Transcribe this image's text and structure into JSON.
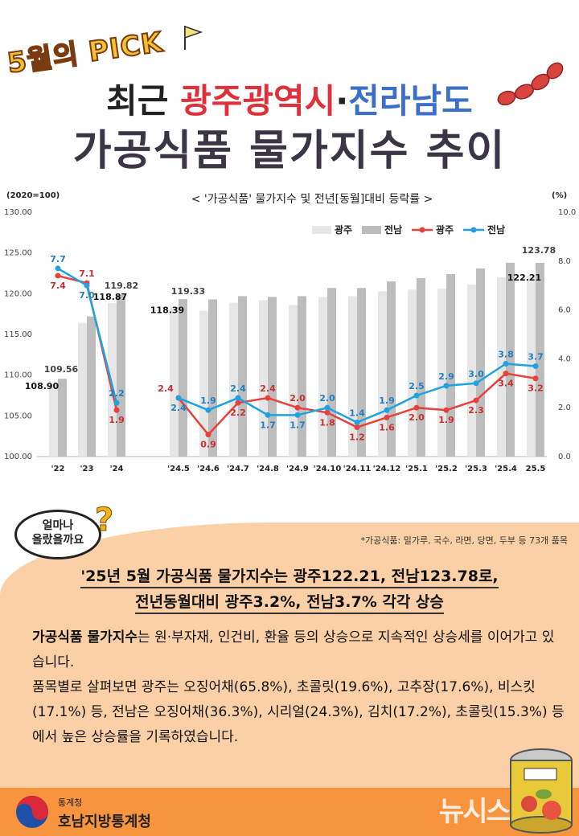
{
  "header": {
    "pick_label": "5월의 PICK",
    "title_line1_a": "최근 ",
    "title_line1_b": "광주광역시",
    "title_line1_c": "·",
    "title_line1_d": "전라남도",
    "title_line2": "가공식품 물가지수 추이"
  },
  "chart_data": {
    "type": "bar",
    "title": "< '가공식품'  물가지수 및 전년[동월]대비 등락률 >",
    "left_axis_unit": "(2020=100)",
    "right_axis_unit": "(%)",
    "left_ylim": [
      100,
      130
    ],
    "left_ticks": [
      "100.00",
      "105.00",
      "110.00",
      "115.00",
      "120.00",
      "125.00",
      "130.00"
    ],
    "right_ylim": [
      0,
      10
    ],
    "right_ticks": [
      "0.0",
      "2.0",
      "4.0",
      "6.0",
      "8.0",
      "10.0"
    ],
    "categories": [
      "'22",
      "'23",
      "'24",
      "'24.5",
      "'24.6",
      "'24.7",
      "'24.8",
      "'24.9",
      "'24.10",
      "'24.11",
      "'24.12",
      "'25.1",
      "'25.2",
      "'25.3",
      "'25.4",
      "25.5"
    ],
    "legend": [
      "광주",
      "전남",
      "광주",
      "전남"
    ],
    "colors": {
      "gwangju_bar": "#e6e6e6",
      "jeonnam_bar": "#bdbdbd",
      "gwangju_line": "#e8413c",
      "jeonnam_line": "#1fa3e0"
    },
    "series": [
      {
        "name": "광주",
        "kind": "bar",
        "axis": "left",
        "values": [
          108.9,
          116.4,
          118.87,
          118.39,
          117.9,
          118.9,
          119.2,
          118.6,
          119.6,
          119.7,
          120.3,
          120.5,
          120.6,
          121.1,
          122.0,
          122.21
        ]
      },
      {
        "name": "전남",
        "kind": "bar",
        "axis": "left",
        "values": [
          109.56,
          117.2,
          119.82,
          119.33,
          119.3,
          119.7,
          119.6,
          119.7,
          120.7,
          120.7,
          121.5,
          121.9,
          122.4,
          123.1,
          123.8,
          123.78
        ]
      },
      {
        "name": "광주",
        "kind": "line",
        "axis": "right",
        "values": [
          7.4,
          7.1,
          1.9,
          2.4,
          0.9,
          2.2,
          2.4,
          2.0,
          1.8,
          1.2,
          1.6,
          2.0,
          1.9,
          2.3,
          3.4,
          3.2
        ]
      },
      {
        "name": "전남",
        "kind": "line",
        "axis": "right",
        "values": [
          7.7,
          7.0,
          2.2,
          2.4,
          1.9,
          2.4,
          1.7,
          1.7,
          2.0,
          1.4,
          1.9,
          2.5,
          2.9,
          3.0,
          3.8,
          3.7
        ]
      }
    ],
    "bar_value_labels": {
      "gwangju": [
        {
          "index": 0,
          "text": "108.90"
        },
        {
          "index": 2,
          "text": "118.87"
        },
        {
          "index": 3,
          "text": "118.39"
        },
        {
          "index": 15,
          "text": "122.21"
        }
      ],
      "jeonnam": [
        {
          "index": 0,
          "text": "109.56"
        },
        {
          "index": 2,
          "text": "119.82"
        },
        {
          "index": 3,
          "text": "119.33"
        },
        {
          "index": 15,
          "text": "123.78"
        }
      ]
    },
    "line_labels": {
      "gwangju": [
        "7.4",
        "7.1",
        "1.9",
        "2.4",
        "0.9",
        "2.2",
        "2.4",
        "2.0",
        "1.8",
        "1.2",
        "1.6",
        "2.0",
        "1.9",
        "2.3",
        "3.4",
        "3.2"
      ],
      "jeonnam": [
        "7.7",
        "7.0",
        "2.2",
        "2.4",
        "1.9",
        "2.4",
        "1.7",
        "1.7",
        "2.0",
        "1.4",
        "1.9",
        "2.5",
        "2.9",
        "3.0",
        "3.8",
        "3.7"
      ]
    },
    "legend_placement": "top-right",
    "grid": false
  },
  "summary": {
    "bubble_text_1": "얼마나",
    "bubble_text_2": "올랐을까요",
    "footnote": "*가공식품: 밀가루, 국수, 라면, 당면, 두부 등 73개 품목",
    "headline_1": "'25년 5월 가공식품 물가지수는 광주122.21, 전남123.78로,",
    "headline_2": "전년동월대비 광주3.2%, 전남3.7% 각각 상승",
    "body_bold": "가공식품 물가지수",
    "body_1": "는 원·부자재, 인건비, 환율 등의 상승으로 지속적인 상승세를 이어가고 있습니다.",
    "body_2": "품목별로 살펴보면 광주는 오징어채(65.8%), 초콜릿(19.6%), 고추장(17.6%), 비스킷(17.1%) 등, 전남은 오징어채(36.3%), 시리얼(24.3%), 김치(17.2%), 초콜릿(15.3%) 등에서 높은 상승률을 기록하였습니다."
  },
  "footer": {
    "agency_small": "통계청",
    "agency_name": "호남지방통계청",
    "watermark": "뉴시스"
  }
}
